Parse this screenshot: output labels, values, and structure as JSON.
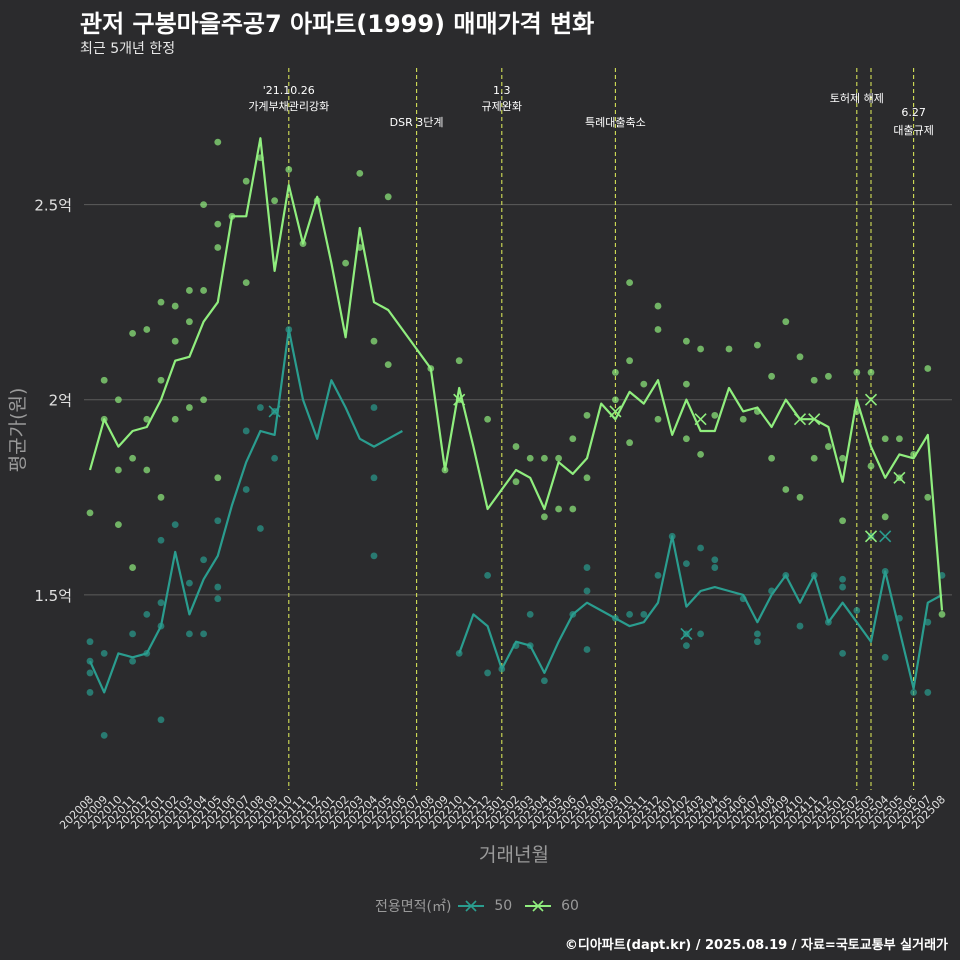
{
  "title": "관저 구봉마을주공7 아파트(1999) 매매가격 변화",
  "subtitle": "최근 5개년 한정",
  "caption": "©디아파트(dapt.kr) / 2025.08.19 / 자료=국토교통부 실거래가",
  "legend": {
    "title": "전용면적(㎡)",
    "items": [
      {
        "label": "50",
        "color": "#2a9d8f"
      },
      {
        "label": "60",
        "color": "#90ee7e"
      }
    ]
  },
  "chart_data": {
    "type": "line",
    "xlabel": "거래년월",
    "ylabel": "평균가(원)",
    "ylim": [
      1.0,
      2.85
    ],
    "yticks": [
      {
        "value": 1.5,
        "label": "1.5억"
      },
      {
        "value": 2.0,
        "label": "2억"
      },
      {
        "value": 2.5,
        "label": "2.5억"
      }
    ],
    "x": [
      "202008",
      "202009",
      "202010",
      "202011",
      "202012",
      "202101",
      "202102",
      "202103",
      "202104",
      "202105",
      "202106",
      "202107",
      "202108",
      "202109",
      "202110",
      "202111",
      "202112",
      "202201",
      "202202",
      "202203",
      "202204",
      "202205",
      "202206",
      "202207",
      "202208",
      "202209",
      "202210",
      "202211",
      "202212",
      "202301",
      "202302",
      "202303",
      "202304",
      "202305",
      "202306",
      "202307",
      "202308",
      "202309",
      "202310",
      "202311",
      "202312",
      "202401",
      "202402",
      "202403",
      "202404",
      "202405",
      "202406",
      "202407",
      "202408",
      "202409",
      "202410",
      "202411",
      "202412",
      "202501",
      "202502",
      "202503",
      "202504",
      "202505",
      "202506",
      "202507",
      "202508"
    ],
    "events": [
      {
        "x": "202110",
        "label": [
          "'21.10.26",
          "가계부채관리강화"
        ]
      },
      {
        "x": "202207",
        "label": [
          "DSR 3단계"
        ]
      },
      {
        "x": "202301",
        "label": [
          "1.3",
          "규제완화"
        ]
      },
      {
        "x": "202309",
        "label": [
          "특례대출축소"
        ]
      },
      {
        "x": "202502",
        "label": [
          "토허제 해제"
        ]
      },
      {
        "x": "202503",
        "label": [
          ""
        ]
      },
      {
        "x": "202506",
        "label": [
          "6.27",
          "대출규제"
        ]
      }
    ],
    "series": [
      {
        "name": "50",
        "color": "#2a9d8f",
        "values": [
          1.33,
          1.25,
          1.35,
          1.34,
          1.35,
          1.42,
          1.61,
          1.45,
          1.54,
          1.6,
          1.73,
          1.84,
          1.92,
          1.91,
          2.18,
          2.0,
          1.9,
          2.05,
          1.98,
          1.9,
          1.88,
          1.9,
          1.92,
          null,
          null,
          null,
          1.35,
          1.45,
          1.42,
          1.31,
          1.38,
          1.37,
          1.3,
          1.38,
          1.45,
          1.48,
          1.46,
          1.44,
          1.42,
          1.43,
          1.48,
          1.65,
          1.47,
          1.51,
          1.52,
          1.51,
          1.5,
          1.43,
          1.5,
          1.55,
          1.48,
          1.55,
          1.43,
          1.48,
          1.43,
          1.38,
          1.56,
          1.41,
          1.26,
          1.48,
          1.5
        ],
        "points": [
          [
            "202008",
            1.33
          ],
          [
            "202008",
            1.38
          ],
          [
            "202008",
            1.25
          ],
          [
            "202008",
            1.3
          ],
          [
            "202009",
            1.14
          ],
          [
            "202009",
            1.35
          ],
          [
            "202011",
            1.33
          ],
          [
            "202011",
            1.4
          ],
          [
            "202012",
            1.35
          ],
          [
            "202012",
            1.45
          ],
          [
            "202101",
            1.48
          ],
          [
            "202101",
            1.42
          ],
          [
            "202101",
            1.18
          ],
          [
            "202101",
            1.64
          ],
          [
            "202102",
            1.68
          ],
          [
            "202103",
            1.53
          ],
          [
            "202103",
            1.4
          ],
          [
            "202104",
            1.4
          ],
          [
            "202104",
            1.59
          ],
          [
            "202105",
            1.52
          ],
          [
            "202105",
            1.49
          ],
          [
            "202105",
            1.69
          ],
          [
            "202107",
            1.92
          ],
          [
            "202107",
            1.77
          ],
          [
            "202108",
            1.67
          ],
          [
            "202108",
            1.98
          ],
          [
            "202109",
            1.97
          ],
          [
            "202109",
            1.85
          ],
          [
            "202110",
            2.18
          ],
          [
            "202204",
            1.8
          ],
          [
            "202204",
            1.6
          ],
          [
            "202204",
            1.98
          ],
          [
            "202210",
            1.35
          ],
          [
            "202212",
            1.55
          ],
          [
            "202212",
            1.3
          ],
          [
            "202301",
            1.31
          ],
          [
            "202302",
            1.37
          ],
          [
            "202303",
            1.45
          ],
          [
            "202303",
            1.37
          ],
          [
            "202304",
            1.28
          ],
          [
            "202306",
            1.45
          ],
          [
            "202307",
            1.51
          ],
          [
            "202307",
            1.57
          ],
          [
            "202307",
            1.36
          ],
          [
            "202309",
            1.44
          ],
          [
            "202310",
            1.45
          ],
          [
            "202311",
            1.45
          ],
          [
            "202312",
            1.55
          ],
          [
            "202401",
            1.65
          ],
          [
            "202402",
            1.4
          ],
          [
            "202402",
            1.37
          ],
          [
            "202402",
            1.58
          ],
          [
            "202403",
            1.62
          ],
          [
            "202403",
            1.4
          ],
          [
            "202404",
            1.59
          ],
          [
            "202404",
            1.57
          ],
          [
            "202406",
            1.49
          ],
          [
            "202407",
            1.4
          ],
          [
            "202407",
            1.38
          ],
          [
            "202408",
            1.51
          ],
          [
            "202409",
            1.55
          ],
          [
            "202410",
            1.42
          ],
          [
            "202411",
            1.55
          ],
          [
            "202412",
            1.43
          ],
          [
            "202501",
            1.54
          ],
          [
            "202501",
            1.52
          ],
          [
            "202501",
            1.35
          ],
          [
            "202502",
            1.46
          ],
          [
            "202503",
            1.65
          ],
          [
            "202504",
            1.56
          ],
          [
            "202504",
            1.34
          ],
          [
            "202505",
            1.44
          ],
          [
            "202506",
            1.25
          ],
          [
            "202507",
            1.43
          ],
          [
            "202507",
            1.25
          ],
          [
            "202508",
            1.55
          ]
        ]
      },
      {
        "name": "60",
        "color": "#90ee7e",
        "values": [
          1.82,
          1.95,
          1.88,
          1.92,
          1.93,
          2.0,
          2.1,
          2.11,
          2.2,
          2.25,
          2.47,
          2.47,
          2.67,
          2.33,
          2.55,
          2.4,
          2.52,
          2.35,
          2.16,
          2.44,
          2.25,
          2.23,
          2.18,
          2.13,
          2.08,
          1.82,
          2.03,
          1.88,
          1.72,
          1.77,
          1.82,
          1.8,
          1.72,
          1.84,
          1.81,
          1.85,
          1.99,
          1.95,
          2.02,
          1.99,
          2.05,
          1.91,
          2.0,
          1.92,
          1.92,
          2.03,
          1.97,
          1.98,
          1.93,
          2.0,
          1.95,
          1.95,
          1.93,
          1.79,
          2.0,
          1.88,
          1.8,
          1.86,
          1.85,
          1.91,
          1.46
        ],
        "points": [
          [
            "202008",
            1.71
          ],
          [
            "202009",
            2.05
          ],
          [
            "202009",
            1.95
          ],
          [
            "202010",
            1.82
          ],
          [
            "202010",
            1.68
          ],
          [
            "202010",
            2.0
          ],
          [
            "202011",
            2.17
          ],
          [
            "202011",
            1.57
          ],
          [
            "202011",
            1.85
          ],
          [
            "202012",
            2.18
          ],
          [
            "202012",
            1.82
          ],
          [
            "202012",
            1.95
          ],
          [
            "202101",
            2.25
          ],
          [
            "202101",
            1.75
          ],
          [
            "202101",
            2.05
          ],
          [
            "202102",
            2.24
          ],
          [
            "202102",
            2.15
          ],
          [
            "202102",
            1.95
          ],
          [
            "202103",
            2.28
          ],
          [
            "202103",
            2.2
          ],
          [
            "202103",
            1.98
          ],
          [
            "202104",
            2.5
          ],
          [
            "202104",
            2.28
          ],
          [
            "202104",
            2.0
          ],
          [
            "202105",
            2.66
          ],
          [
            "202105",
            2.45
          ],
          [
            "202105",
            2.39
          ],
          [
            "202105",
            1.8
          ],
          [
            "202106",
            2.47
          ],
          [
            "202107",
            2.56
          ],
          [
            "202107",
            2.3
          ],
          [
            "202108",
            2.62
          ],
          [
            "202109",
            2.51
          ],
          [
            "202110",
            2.59
          ],
          [
            "202111",
            2.4
          ],
          [
            "202112",
            2.51
          ],
          [
            "202202",
            2.35
          ],
          [
            "202203",
            2.58
          ],
          [
            "202203",
            2.39
          ],
          [
            "202204",
            2.15
          ],
          [
            "202205",
            2.52
          ],
          [
            "202205",
            2.09
          ],
          [
            "202208",
            2.08
          ],
          [
            "202209",
            1.82
          ],
          [
            "202210",
            2.1
          ],
          [
            "202210",
            2.0
          ],
          [
            "202212",
            1.95
          ],
          [
            "202302",
            1.88
          ],
          [
            "202302",
            1.79
          ],
          [
            "202303",
            1.85
          ],
          [
            "202304",
            1.85
          ],
          [
            "202304",
            1.7
          ],
          [
            "202305",
            1.85
          ],
          [
            "202305",
            1.72
          ],
          [
            "202306",
            1.9
          ],
          [
            "202306",
            1.72
          ],
          [
            "202307",
            1.96
          ],
          [
            "202307",
            1.8
          ],
          [
            "202309",
            2.07
          ],
          [
            "202309",
            2.0
          ],
          [
            "202310",
            2.3
          ],
          [
            "202310",
            2.1
          ],
          [
            "202310",
            1.89
          ],
          [
            "202311",
            2.04
          ],
          [
            "202312",
            2.24
          ],
          [
            "202312",
            2.18
          ],
          [
            "202312",
            1.95
          ],
          [
            "202402",
            2.15
          ],
          [
            "202402",
            2.04
          ],
          [
            "202402",
            1.9
          ],
          [
            "202403",
            2.13
          ],
          [
            "202403",
            1.86
          ],
          [
            "202404",
            1.96
          ],
          [
            "202405",
            2.13
          ],
          [
            "202406",
            1.95
          ],
          [
            "202407",
            2.14
          ],
          [
            "202407",
            1.97
          ],
          [
            "202408",
            2.06
          ],
          [
            "202408",
            1.85
          ],
          [
            "202409",
            2.2
          ],
          [
            "202409",
            1.77
          ],
          [
            "202410",
            2.11
          ],
          [
            "202410",
            1.75
          ],
          [
            "202411",
            2.05
          ],
          [
            "202411",
            1.85
          ],
          [
            "202412",
            2.06
          ],
          [
            "202412",
            1.88
          ],
          [
            "202501",
            1.85
          ],
          [
            "202501",
            1.69
          ],
          [
            "202502",
            2.07
          ],
          [
            "202502",
            1.97
          ],
          [
            "202503",
            2.07
          ],
          [
            "202503",
            1.83
          ],
          [
            "202504",
            1.9
          ],
          [
            "202504",
            1.7
          ],
          [
            "202505",
            1.9
          ],
          [
            "202505",
            1.8
          ],
          [
            "202506",
            1.86
          ],
          [
            "202507",
            2.08
          ],
          [
            "202507",
            1.75
          ],
          [
            "202508",
            1.45
          ]
        ]
      }
    ],
    "highlights": [
      {
        "series": "50",
        "x": "202109",
        "y": 1.97
      },
      {
        "series": "50",
        "x": "202402",
        "y": 1.4
      },
      {
        "series": "50",
        "x": "202504",
        "y": 1.65
      },
      {
        "series": "60",
        "x": "202210",
        "y": 2.0
      },
      {
        "series": "60",
        "x": "202309",
        "y": 1.97
      },
      {
        "series": "60",
        "x": "202403",
        "y": 1.95
      },
      {
        "series": "60",
        "x": "202410",
        "y": 1.95
      },
      {
        "series": "60",
        "x": "202411",
        "y": 1.95
      },
      {
        "series": "60",
        "x": "202503",
        "y": 2.0
      },
      {
        "series": "60",
        "x": "202503",
        "y": 1.65
      },
      {
        "series": "60",
        "x": "202505",
        "y": 1.8
      }
    ]
  }
}
